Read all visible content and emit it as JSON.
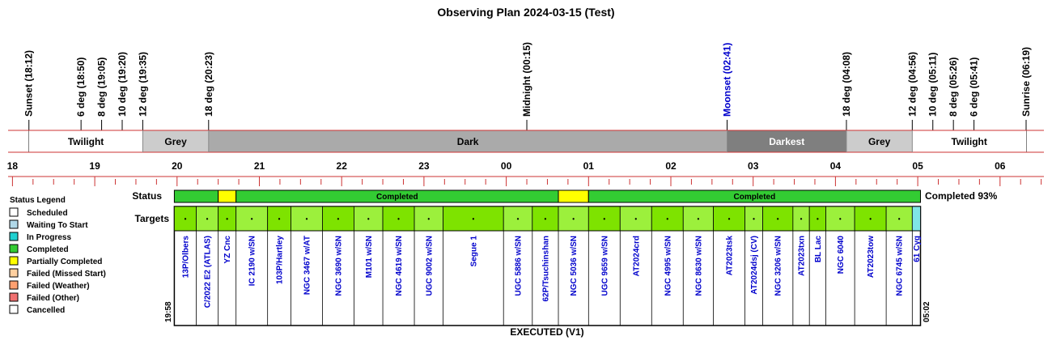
{
  "chart_data": {
    "type": "timeline",
    "title": "Observing Plan 2024-03-15 (Test)",
    "events": [
      {
        "label": "Sunset (18:12)",
        "time": "18:12",
        "color": "#000000"
      },
      {
        "label": "6 deg (18:50)",
        "time": "18:50",
        "color": "#000000"
      },
      {
        "label": "8 deg (19:05)",
        "time": "19:05",
        "color": "#000000"
      },
      {
        "label": "10 deg (19:20)",
        "time": "19:20",
        "color": "#000000"
      },
      {
        "label": "12 deg (19:35)",
        "time": "19:35",
        "color": "#000000"
      },
      {
        "label": "18 deg (20:23)",
        "time": "20:23",
        "color": "#000000"
      },
      {
        "label": "Midnight (00:15)",
        "time": "00:15",
        "color": "#000000"
      },
      {
        "label": "Moonset (02:41)",
        "time": "02:41",
        "color": "#0000cc"
      },
      {
        "label": "18 deg (04:08)",
        "time": "04:08",
        "color": "#000000"
      },
      {
        "label": "12 deg (04:56)",
        "time": "04:56",
        "color": "#000000"
      },
      {
        "label": "10 deg (05:11)",
        "time": "05:11",
        "color": "#000000"
      },
      {
        "label": "8 deg (05:26)",
        "time": "05:26",
        "color": "#000000"
      },
      {
        "label": "6 deg (05:41)",
        "time": "05:41",
        "color": "#000000"
      },
      {
        "label": "Sunrise (06:19)",
        "time": "06:19",
        "color": "#000000"
      }
    ],
    "phases": [
      {
        "label": "Twilight",
        "start": "18:12",
        "end": "19:35",
        "color": "#ffffff",
        "text_color": "#000000"
      },
      {
        "label": "Grey",
        "start": "19:35",
        "end": "20:23",
        "color": "#cccccc",
        "text_color": "#000000"
      },
      {
        "label": "Dark",
        "start": "20:23",
        "end": "02:41",
        "color": "#aaaaaa",
        "text_color": "#000000"
      },
      {
        "label": "Darkest",
        "start": "02:41",
        "end": "04:08",
        "color": "#7f7f7f",
        "text_color": "#ffffff"
      },
      {
        "label": "Grey",
        "start": "04:08",
        "end": "04:56",
        "color": "#cccccc",
        "text_color": "#000000"
      },
      {
        "label": "Twilight",
        "start": "04:56",
        "end": "06:19",
        "color": "#ffffff",
        "text_color": "#000000"
      }
    ],
    "hour_ticks": [
      "18",
      "19",
      "20",
      "21",
      "22",
      "23",
      "00",
      "01",
      "02",
      "03",
      "04",
      "05",
      "06"
    ],
    "row_labels": {
      "status": "Status",
      "targets": "Targets"
    },
    "plan_start_label": "19:58",
    "plan_end_label": "05:02",
    "plan_start": "19:58",
    "plan_end": "05:02",
    "status_segments": [
      {
        "label": "",
        "start": "19:58",
        "end": "20:30",
        "status": "Completed"
      },
      {
        "label": "",
        "start": "20:30",
        "end": "20:43",
        "status": "Partially Completed"
      },
      {
        "label": "Completed",
        "start": "20:43",
        "end": "00:38",
        "status": "Completed"
      },
      {
        "label": "",
        "start": "00:38",
        "end": "01:00",
        "status": "Partially Completed"
      },
      {
        "label": "Completed",
        "start": "01:00",
        "end": "05:02",
        "status": "Completed"
      }
    ],
    "completion_text": "Completed 93%",
    "targets": [
      {
        "name": "13P/Olbers",
        "start": "19:58",
        "end": "20:14",
        "mark": "•",
        "color": "#7ee300"
      },
      {
        "name": "C/2022 E2 (ATLAS)",
        "start": "20:14",
        "end": "20:30",
        "mark": "•",
        "color": "#9cf03c"
      },
      {
        "name": "YZ Cnc",
        "start": "20:30",
        "end": "20:43",
        "mark": "•",
        "color": "#7ee300"
      },
      {
        "name": "IC 2190 w/SN",
        "start": "20:43",
        "end": "21:06",
        "mark": "•",
        "color": "#9cf03c"
      },
      {
        "name": "103P/Hartley",
        "start": "21:06",
        "end": "21:23",
        "mark": "•",
        "color": "#7ee300"
      },
      {
        "name": "NGC 3467 w/AT",
        "start": "21:23",
        "end": "21:46",
        "mark": "•",
        "color": "#9cf03c"
      },
      {
        "name": "NGC 3690 w/SN",
        "start": "21:46",
        "end": "22:09",
        "mark": "•",
        "color": "#7ee300"
      },
      {
        "name": "M101 w/SN",
        "start": "22:09",
        "end": "22:30",
        "mark": "•",
        "color": "#9cf03c"
      },
      {
        "name": "NGC 4619 w/SN",
        "start": "22:30",
        "end": "22:53",
        "mark": "•",
        "color": "#7ee300"
      },
      {
        "name": "UGC 9002 w/SN",
        "start": "22:53",
        "end": "23:14",
        "mark": "•",
        "color": "#9cf03c"
      },
      {
        "name": "Segue 1",
        "start": "23:14",
        "end": "23:58",
        "mark": "•",
        "color": "#7ee300"
      },
      {
        "name": "UGC 5886 w/SN",
        "start": "23:58",
        "end": "00:19",
        "mark": "•",
        "color": "#9cf03c"
      },
      {
        "name": "62P/Tsuchinshan",
        "start": "00:19",
        "end": "00:38",
        "mark": "•",
        "color": "#7ee300"
      },
      {
        "name": "NGC 5036 w/SN",
        "start": "00:38",
        "end": "01:00",
        "mark": "•",
        "color": "#9cf03c"
      },
      {
        "name": "UGC 9659 w/SN",
        "start": "01:00",
        "end": "01:23",
        "mark": "•",
        "color": "#7ee300"
      },
      {
        "name": "AT2024crd",
        "start": "01:23",
        "end": "01:46",
        "mark": "•",
        "color": "#9cf03c"
      },
      {
        "name": "NGC 4995 w/SN",
        "start": "01:46",
        "end": "02:09",
        "mark": "•",
        "color": "#7ee300"
      },
      {
        "name": "NGC 8630 w/SN",
        "start": "02:09",
        "end": "02:31",
        "mark": "•",
        "color": "#9cf03c"
      },
      {
        "name": "AT2023tsk",
        "start": "02:31",
        "end": "02:54",
        "mark": "•",
        "color": "#7ee300"
      },
      {
        "name": "AT2024dsj (CV)",
        "start": "02:54",
        "end": "03:07",
        "mark": "•",
        "color": "#9cf03c"
      },
      {
        "name": "NGC 3206 w/SN",
        "start": "03:07",
        "end": "03:29",
        "mark": "•",
        "color": "#7ee300"
      },
      {
        "name": "AT2023txn",
        "start": "03:29",
        "end": "03:41",
        "mark": "•",
        "color": "#9cf03c"
      },
      {
        "name": "BL Lac",
        "start": "03:41",
        "end": "03:53",
        "mark": "•",
        "color": "#7ee300"
      },
      {
        "name": "NGC 6040",
        "start": "03:53",
        "end": "04:14",
        "mark": "•",
        "color": "#9cf03c"
      },
      {
        "name": "AT2023tow",
        "start": "04:14",
        "end": "04:37",
        "mark": "•",
        "color": "#7ee300"
      },
      {
        "name": "NGC 6745 w/SN",
        "start": "04:37",
        "end": "04:56",
        "mark": "•",
        "color": "#9cf03c"
      },
      {
        "name": "61 Cyg",
        "start": "04:56",
        "end": "05:02",
        "mark": "",
        "color": "#7fe6e6"
      }
    ],
    "executed_label": "EXECUTED (V1)"
  },
  "legend": {
    "title": "Status Legend",
    "items": [
      {
        "label": "Scheduled",
        "color": "#ffffff"
      },
      {
        "label": "Waiting To Start",
        "color": "#b0d8e8"
      },
      {
        "label": "In Progress",
        "color": "#20d0d0"
      },
      {
        "label": "Completed",
        "color": "#33cc33"
      },
      {
        "label": "Partially Completed",
        "color": "#ffff00"
      },
      {
        "label": "Failed (Missed Start)",
        "color": "#ffd0a0"
      },
      {
        "label": "Failed (Weather)",
        "color": "#ffa070"
      },
      {
        "label": "Failed (Other)",
        "color": "#f07070"
      },
      {
        "label": "Cancelled",
        "color": "#ffffff"
      }
    ]
  },
  "colors": {
    "completed": "#33cc33",
    "partial": "#ffff00",
    "moon": "#0000cc",
    "target_text": "#0000cc",
    "timeline_line": "#cc3333"
  }
}
